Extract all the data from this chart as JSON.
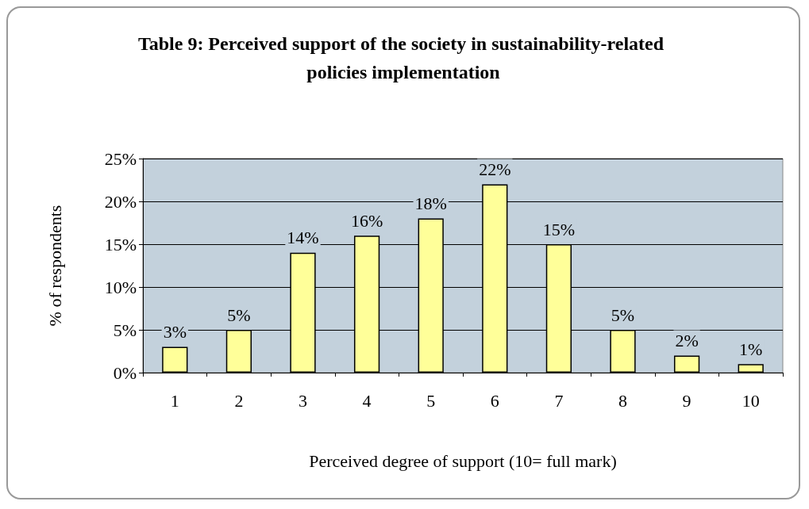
{
  "chart_data": {
    "type": "bar",
    "title": "Table 9: Perceived support of the society in sustainability-related policies implementation",
    "xlabel": "Perceived degree of support (10= full mark)",
    "ylabel": "% of respondents",
    "categories": [
      "1",
      "2",
      "3",
      "4",
      "5",
      "6",
      "7",
      "8",
      "9",
      "10"
    ],
    "values": [
      3,
      5,
      14,
      16,
      18,
      22,
      15,
      5,
      2,
      1
    ],
    "value_labels": [
      "3%",
      "5%",
      "14%",
      "16%",
      "18%",
      "22%",
      "15%",
      "5%",
      "2%",
      "1%"
    ],
    "color": "#ffff99",
    "ylim": [
      0,
      25
    ],
    "yticks": [
      {
        "value": 0,
        "label": "0%"
      },
      {
        "value": 5,
        "label": "5%"
      },
      {
        "value": 10,
        "label": "10%"
      },
      {
        "value": 15,
        "label": "15%"
      },
      {
        "value": 20,
        "label": "20%"
      },
      {
        "value": 25,
        "label": "25%"
      }
    ],
    "grid": "y"
  }
}
